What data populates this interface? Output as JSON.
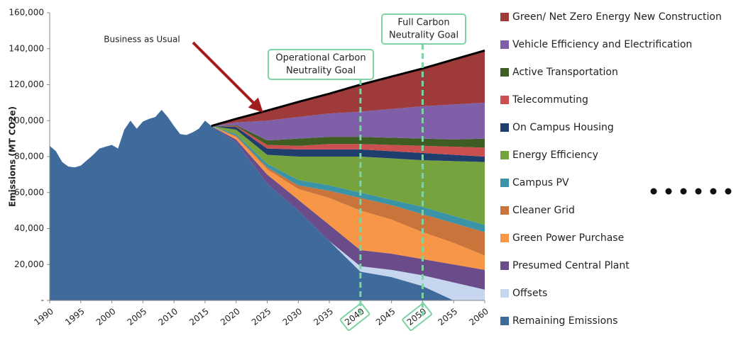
{
  "chart_data": {
    "type": "stacked_area",
    "y_axis_label": "Emissions (MT CO2e)",
    "xlim": [
      1990,
      2060
    ],
    "xticks": [
      1990,
      1995,
      2000,
      2005,
      2010,
      2015,
      2020,
      2025,
      2030,
      2035,
      2040,
      2045,
      2050,
      2055,
      2060
    ],
    "ylim": [
      0,
      160000
    ],
    "yticks": [
      {
        "value": 0,
        "label": "-"
      },
      {
        "value": 20000,
        "label": "20,000"
      },
      {
        "value": 40000,
        "label": "40,000"
      },
      {
        "value": 60000,
        "label": "60,000"
      },
      {
        "value": 80000,
        "label": "80,000"
      },
      {
        "value": 100000,
        "label": "100,000"
      },
      {
        "value": 120000,
        "label": "120,000"
      },
      {
        "value": 140000,
        "label": "140,000"
      },
      {
        "value": 160000,
        "label": "160,000"
      }
    ],
    "x": [
      1990,
      1991,
      1992,
      1993,
      1994,
      1995,
      1996,
      1997,
      1998,
      1999,
      2000,
      2001,
      2002,
      2003,
      2004,
      2005,
      2006,
      2007,
      2008,
      2009,
      2010,
      2011,
      2012,
      2013,
      2014,
      2015,
      2016,
      2020,
      2025,
      2030,
      2035,
      2040,
      2045,
      2050,
      2055,
      2060
    ],
    "series": [
      {
        "name": "Remaining Emissions",
        "color": "#3f6a9c",
        "values": [
          86000,
          83000,
          77000,
          74500,
          74000,
          75000,
          78000,
          81000,
          84500,
          85500,
          86500,
          84500,
          95000,
          100000,
          95500,
          99500,
          101000,
          102000,
          106000,
          102000,
          97000,
          92500,
          92000,
          93500,
          95500,
          100000,
          97000,
          88000,
          65000,
          50000,
          33000,
          16000,
          13000,
          8000,
          0,
          0
        ]
      },
      {
        "name": "Offsets",
        "color": "#c5d6ee",
        "values": [
          null,
          null,
          null,
          null,
          null,
          null,
          null,
          null,
          null,
          null,
          null,
          null,
          null,
          null,
          null,
          null,
          null,
          null,
          null,
          null,
          null,
          null,
          null,
          null,
          null,
          null,
          0,
          0,
          0,
          0,
          0,
          3000,
          4000,
          6000,
          10000,
          6000
        ]
      },
      {
        "name": "Presumed Central Plant",
        "color": "#6b4c8a",
        "values": [
          null,
          null,
          null,
          null,
          null,
          null,
          null,
          null,
          null,
          null,
          null,
          null,
          null,
          null,
          null,
          null,
          null,
          null,
          null,
          null,
          null,
          null,
          null,
          null,
          null,
          null,
          0,
          1500,
          5000,
          6000,
          9000,
          9000,
          9000,
          9000,
          10000,
          11000
        ]
      },
      {
        "name": "Green Power Purchase",
        "color": "#f79646",
        "values": [
          null,
          null,
          null,
          null,
          null,
          null,
          null,
          null,
          null,
          null,
          null,
          null,
          null,
          null,
          null,
          null,
          null,
          null,
          null,
          null,
          null,
          null,
          null,
          null,
          null,
          null,
          0,
          1500,
          3000,
          6000,
          15000,
          22000,
          19000,
          15000,
          12000,
          8000
        ]
      },
      {
        "name": "Cleaner Grid",
        "color": "#c8743a",
        "values": [
          null,
          null,
          null,
          null,
          null,
          null,
          null,
          null,
          null,
          null,
          null,
          null,
          null,
          null,
          null,
          null,
          null,
          null,
          null,
          null,
          null,
          null,
          null,
          null,
          null,
          null,
          0,
          500,
          1000,
          2000,
          4000,
          7000,
          8000,
          10000,
          11000,
          13000
        ]
      },
      {
        "name": "Campus PV",
        "color": "#3b93a8",
        "values": [
          null,
          null,
          null,
          null,
          null,
          null,
          null,
          null,
          null,
          null,
          null,
          null,
          null,
          null,
          null,
          null,
          null,
          null,
          null,
          null,
          null,
          null,
          null,
          null,
          null,
          null,
          0,
          1000,
          2000,
          3000,
          3000,
          3000,
          3000,
          4000,
          4000,
          4000
        ]
      },
      {
        "name": "Energy Efficiency",
        "color": "#77a33f",
        "values": [
          null,
          null,
          null,
          null,
          null,
          null,
          null,
          null,
          null,
          null,
          null,
          null,
          null,
          null,
          null,
          null,
          null,
          null,
          null,
          null,
          null,
          null,
          null,
          null,
          null,
          null,
          0,
          2500,
          5000,
          13000,
          16000,
          20000,
          23000,
          26000,
          30500,
          35000
        ]
      },
      {
        "name": "On Campus Housing",
        "color": "#1f3e6e",
        "values": [
          null,
          null,
          null,
          null,
          null,
          null,
          null,
          null,
          null,
          null,
          null,
          null,
          null,
          null,
          null,
          null,
          null,
          null,
          null,
          null,
          null,
          null,
          null,
          null,
          null,
          null,
          0,
          1500,
          3500,
          4000,
          4000,
          4000,
          4000,
          4000,
          3500,
          3000
        ]
      },
      {
        "name": "Telecommuting",
        "color": "#c9504f",
        "values": [
          null,
          null,
          null,
          null,
          null,
          null,
          null,
          null,
          null,
          null,
          null,
          null,
          null,
          null,
          null,
          null,
          null,
          null,
          null,
          null,
          null,
          null,
          null,
          null,
          null,
          null,
          0,
          500,
          2000,
          2000,
          3000,
          3000,
          3500,
          4000,
          4500,
          5000
        ]
      },
      {
        "name": "Active Transportation",
        "color": "#3f5d23",
        "values": [
          null,
          null,
          null,
          null,
          null,
          null,
          null,
          null,
          null,
          null,
          null,
          null,
          null,
          null,
          null,
          null,
          null,
          null,
          null,
          null,
          null,
          null,
          null,
          null,
          null,
          null,
          0,
          500,
          2500,
          4000,
          4000,
          4000,
          4000,
          4000,
          4000,
          5000
        ]
      },
      {
        "name": "Vehicle Efficiency and Electrification",
        "color": "#7f5fa8",
        "values": [
          null,
          null,
          null,
          null,
          null,
          null,
          null,
          null,
          null,
          null,
          null,
          null,
          null,
          null,
          null,
          null,
          null,
          null,
          null,
          null,
          null,
          null,
          null,
          null,
          null,
          null,
          0,
          1500,
          11000,
          12000,
          13000,
          14000,
          16000,
          18000,
          19500,
          20000
        ]
      },
      {
        "name": "Green/ Net Zero Energy New Construction",
        "color": "#9e3a3a",
        "values": [
          null,
          null,
          null,
          null,
          null,
          null,
          null,
          null,
          null,
          null,
          null,
          null,
          null,
          null,
          null,
          null,
          null,
          null,
          null,
          null,
          null,
          null,
          null,
          null,
          null,
          null,
          0,
          2000,
          5600,
          8400,
          11000,
          15000,
          18000,
          21000,
          25000,
          29000
        ]
      }
    ],
    "annotations": [
      {
        "text": [
          "Business as Usual"
        ]
      },
      {
        "text": [
          "Operational Carbon",
          "Neutrality Goal"
        ],
        "x": 2040
      },
      {
        "text": [
          "Full Carbon",
          "Neutrality Goal"
        ],
        "x": 2050
      }
    ]
  }
}
